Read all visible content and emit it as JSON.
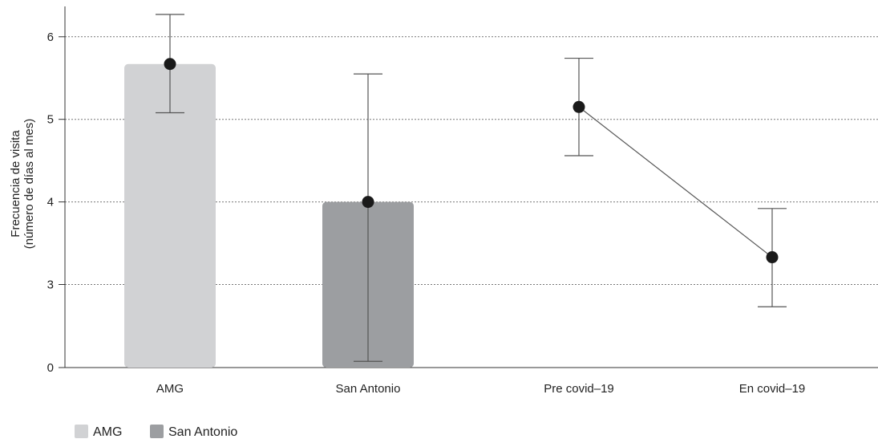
{
  "chart_data": {
    "type": "bar",
    "ylabel": "Frecuencia de visita\n(número de días al mes)",
    "yticks": [
      "0",
      "3",
      "4",
      "5",
      "6"
    ],
    "categories": [
      "AMG",
      "San Antonio",
      "Pre covid–19",
      "En covid–19"
    ],
    "grid": true,
    "legend": {
      "placement": "bottom-left",
      "entries": [
        "AMG",
        "San Antonio"
      ]
    },
    "bars": [
      {
        "category": "AMG",
        "value": 5.67,
        "ci_low": 5.08,
        "ci_high": 6.27,
        "color": "#d1d2d4"
      },
      {
        "category": "San Antonio",
        "value": 4.0,
        "ci_low": 0.38,
        "ci_high": 5.55,
        "color": "#9c9ea1"
      }
    ],
    "line_series": {
      "points": [
        {
          "category": "Pre covid–19",
          "value": 5.15,
          "ci_low": 4.56,
          "ci_high": 5.74
        },
        {
          "category": "En covid–19",
          "value": 3.33,
          "ci_low": 2.73,
          "ci_high": 3.92
        }
      ]
    },
    "marker_color": "#1a1a1a",
    "line_color": "#555555",
    "grid_color": "#777777"
  }
}
